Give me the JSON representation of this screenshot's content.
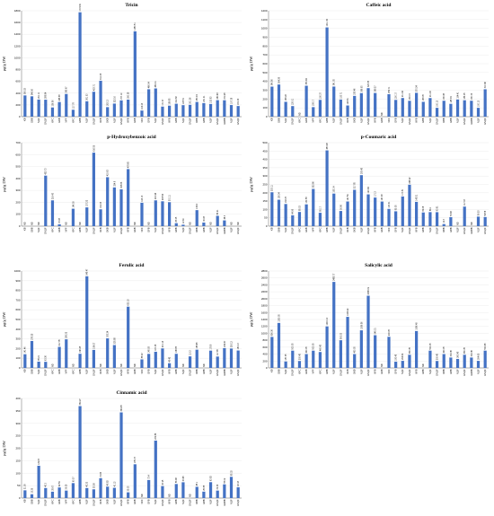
{
  "style": {
    "bar_color": "#4472c4"
  },
  "categories": [
    "KB",
    "GBB",
    "NQF",
    "GNQF",
    "KFC",
    "GKB",
    "NFF",
    "KFC",
    "GBB",
    "NQF",
    "GNQF",
    "KFB",
    "GKB",
    "NQF",
    "GNQF",
    "KFB",
    "GKB",
    "NFF",
    "GFB",
    "NQF",
    "GNQF",
    "KFB",
    "GBB",
    "NQF",
    "GNQF",
    "KBB",
    "GBB",
    "NQF",
    "GNQF",
    "GKBB",
    "NQF",
    "GNQF"
  ],
  "chart_data": [
    {
      "type": "bar",
      "title": "Tricin",
      "ylabel": "μg/g DW",
      "ylim": [
        0,
        1800
      ],
      "yticks": [
        0,
        200,
        400,
        600,
        800,
        1000,
        1200,
        1400,
        1600,
        1800
      ],
      "values": [
        360.92,
        346.06,
        291.11,
        288.84,
        156.56,
        248.68,
        385.67,
        117.78,
        1774.39,
        261.93,
        423.71,
        611.08,
        162.12,
        222.16,
        277.19,
        290.28,
        1450.51,
        104.16,
        466.04,
        480.01,
        171.37,
        186.85,
        219.82,
        195.51,
        201.26,
        250.04,
        231.01,
        215.83,
        280.48,
        279.28,
        197.38,
        181.06
      ],
      "labels": [
        "360.92",
        "346.06",
        "291.11",
        "288.84",
        "156.56",
        "248.68",
        "385.67",
        "117.78",
        "1774.39",
        "261.93",
        "423.71",
        "611.08",
        "162.12",
        "222.16",
        "277.19",
        "290.28",
        "1450.51",
        "104.16",
        "466.04",
        "480.01",
        "171.37",
        "186.85",
        "219.82",
        "195.51",
        "201.26",
        "250.04",
        "231.01",
        "215.83",
        "280.48",
        "279.28",
        "197.38",
        "181.06"
      ]
    },
    {
      "type": "bar",
      "title": "Caffeic acid",
      "ylabel": "μg/g DW",
      "ylim": [
        0,
        1200
      ],
      "yticks": [
        0,
        100,
        200,
        300,
        400,
        500,
        600,
        700,
        800,
        900,
        1000,
        1100,
        1200
      ],
      "values": [
        340.56,
        364.28,
        168.22,
        120.01,
        0,
        350.44,
        108.17,
        190.37,
        1011.34,
        341.05,
        193.71,
        126.81,
        235.46,
        266.95,
        323.35,
        268.27,
        0,
        254.71,
        190.17,
        211.42,
        180.07,
        270.24,
        168.05,
        211.06,
        100.12,
        180.45,
        145.34,
        194.41,
        186.05,
        180.76,
        100.12,
        310.46
      ],
      "labels": [
        "340.56",
        "364.28",
        "168.22",
        "120.01",
        "ND",
        "350.44",
        "108.17",
        "190.37",
        "1011.34",
        "341.05",
        "193.71",
        "126.81",
        "235.46",
        "266.95",
        "323.35",
        "268.27",
        "ND",
        "254.71",
        "190.17",
        "211.42",
        "180.07",
        "270.24",
        "168.05",
        "211.06",
        "100.12",
        "180.45",
        "145.34",
        "194.41",
        "186.05",
        "180.76",
        "100.12",
        "310.46"
      ]
    },
    {
      "type": "bar",
      "title": "p-Hydroxybenzoic acid",
      "ylabel": "μg/g DW",
      "ylim": [
        0,
        700
      ],
      "yticks": [
        0,
        100,
        200,
        300,
        400,
        500,
        600,
        700
      ],
      "values": [
        0,
        0,
        0,
        423.73,
        216.43,
        15.08,
        0,
        146.09,
        0,
        157.22,
        616.59,
        141.06,
        410.63,
        324.8,
        308.66,
        478.65,
        0,
        196.13,
        0,
        216.44,
        208.54,
        201.11,
        25.05,
        12.09,
        0,
        134.4,
        30.08,
        0,
        86.21,
        48.3,
        0,
        0
      ],
      "labels": [
        "ND",
        "ND",
        "ND",
        "423.73",
        "216.43",
        "15.08",
        "ND",
        "146.09",
        "ND",
        "157.22",
        "616.59",
        "141.06",
        "410.63",
        "324.8",
        "308.66",
        "478.65",
        "ND",
        "196.13",
        "ND",
        "216.44",
        "208.54",
        "201.11",
        "25.05",
        "12.09",
        "ND",
        "134.4",
        "30.08",
        "ND",
        "86.21",
        "48.3",
        "ND",
        "ND"
      ]
    },
    {
      "type": "bar",
      "title": "p-Coumaric acid",
      "ylabel": "μg/g DW",
      "ylim": [
        0,
        500
      ],
      "yticks": [
        0,
        50,
        100,
        150,
        200,
        250,
        300,
        350,
        400,
        450,
        500
      ],
      "values": [
        203.11,
        158.34,
        132.76,
        64.96,
        85.03,
        130.58,
        222.86,
        80.17,
        453.98,
        195.14,
        90.86,
        147.59,
        217.85,
        305.45,
        190.44,
        171.3,
        147.26,
        103.31,
        89.05,
        177.81,
        248.22,
        145.51,
        82.08,
        84.1,
        83.81,
        12.3,
        53.66,
        0,
        117.03,
        0,
        56.93,
        54.58
      ],
      "labels": [
        "203.11",
        "158.34",
        "132.76",
        "64.96",
        "85.03",
        "130.58",
        "222.86",
        "80.17",
        "453.98",
        "195.14",
        "90.86",
        "147.59",
        "217.85",
        "305.45",
        "190.44",
        "171.3",
        "147.26",
        "103.31",
        "89.05",
        "177.81",
        "248.22",
        "145.51",
        "82.08",
        "84.1",
        "83.81",
        "12.3",
        "53.66",
        "ND",
        "117.03",
        "ND",
        "56.93",
        "54.58"
      ]
    },
    {
      "type": "bar",
      "title": "Ferulic acid",
      "ylabel": "μg/g DW",
      "ylim": [
        0,
        1000
      ],
      "yticks": [
        0,
        100,
        200,
        300,
        400,
        500,
        600,
        700,
        800,
        900,
        1000
      ],
      "values": [
        141.46,
        278.25,
        65.21,
        63.36,
        0,
        217.35,
        295.22,
        0,
        146.28,
        945.47,
        186.07,
        0,
        305.24,
        235.88,
        0,
        632.18,
        0,
        88.32,
        145.08,
        167.08,
        201.14,
        48.42,
        145.85,
        0,
        119.2,
        188.45,
        0,
        178.8,
        117.45,
        204.67,
        200.12,
        180.13
      ],
      "labels": [
        "141.46",
        "278.25",
        "65.21",
        "63.36",
        "ND",
        "217.35",
        "295.22",
        "ND",
        "146.28",
        "945.47",
        "186.07",
        "ND",
        "305.24",
        "235.88",
        "ND",
        "632.18",
        "ND",
        "88.32",
        "145.08",
        "167.08",
        "201.14",
        "48.42",
        "145.85",
        "ND",
        "119.2",
        "188.45",
        "ND",
        "178.8",
        "117.45",
        "204.67",
        "200.12",
        "180.13"
      ]
    },
    {
      "type": "bar",
      "title": "Salicylic acid",
      "ylabel": "μg/g DW",
      "ylim": [
        0,
        2800
      ],
      "yticks": [
        0,
        200,
        400,
        600,
        800,
        1000,
        1200,
        1400,
        1600,
        1800,
        2000,
        2200,
        2400,
        2600,
        2800
      ],
      "values": [
        896.36,
        1300.05,
        187.05,
        500.05,
        200.45,
        400.05,
        500.05,
        460.45,
        1200.14,
        2485.77,
        800.05,
        1476.29,
        400.05,
        1086.56,
        2086.09,
        945.31,
        0,
        900.05,
        180.45,
        204.69,
        380.35,
        1066.49,
        0,
        500.05,
        200.45,
        400.05,
        300.45,
        260.45,
        380.35,
        300.45,
        204.69,
        500.45
      ],
      "labels": [
        "896.36",
        "1300.05",
        "187.05",
        "500.05",
        "200.45",
        "400.05",
        "500.05",
        "460.45",
        "1200.14",
        "2485.77",
        "800.05",
        "1476.29",
        "400.05",
        "1086.56",
        "2086.09",
        "945.31",
        "ND",
        "900.05",
        "180.45",
        "204.69",
        "380.35",
        "1066.49",
        "ND",
        "500.05",
        "200.45",
        "400.05",
        "300.45",
        "260.45",
        "380.35",
        "300.45",
        "204.69",
        "500.45"
      ]
    },
    {
      "type": "bar",
      "title": "Cinnamic acid",
      "ylabel": "μg/g DW",
      "ylim": [
        0,
        400
      ],
      "yticks": [
        0,
        50,
        100,
        150,
        200,
        250,
        300,
        350,
        400
      ],
      "values": [
        31.08,
        15.29,
        129.67,
        40.3,
        25.67,
        42.59,
        30.08,
        60.07,
        369.27,
        40.23,
        35.08,
        79.66,
        45.82,
        41.12,
        344.05,
        23.05,
        135.73,
        0,
        72.4,
        230.86,
        47.95,
        0,
        56.48,
        63.45,
        0,
        45.1,
        25.85,
        63.82,
        30.06,
        55.09,
        85.32,
        43.18
      ],
      "labels": [
        "31.08",
        "15.29",
        "129.67",
        "40.3",
        "25.67",
        "42.59",
        "30.08",
        "60.07",
        "369.27",
        "40.23",
        "35.08",
        "79.66",
        "45.82",
        "41.12",
        "344.05",
        "23.05",
        "135.73",
        "ND",
        "72.4",
        "230.86",
        "47.95",
        "ND",
        "56.48",
        "63.45",
        "ND",
        "45.1",
        "25.85",
        "63.82",
        "30.06",
        "55.09",
        "85.32",
        "43.18"
      ]
    }
  ]
}
